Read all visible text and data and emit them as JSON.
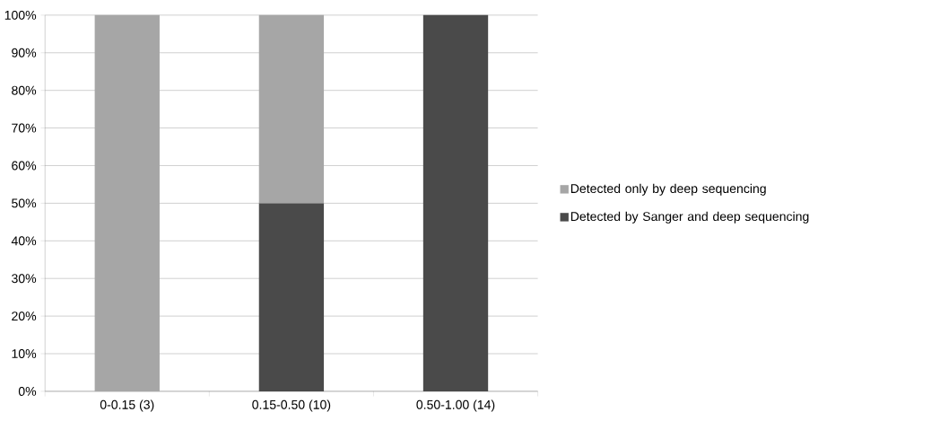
{
  "chart_data": {
    "type": "bar",
    "stacked": true,
    "categories": [
      "0-0.15 (3)",
      "0.15-0.50 (10)",
      "0.50-1.00 (14)"
    ],
    "series": [
      {
        "name": "Detected by Sanger and deep sequencing",
        "color": "#4a4a4a",
        "values": [
          0,
          50,
          100
        ]
      },
      {
        "name": "Detected only by deep sequencing",
        "color": "#a6a6a6",
        "values": [
          100,
          50,
          0
        ]
      }
    ],
    "ylim": [
      0,
      100
    ],
    "yticks": [
      {
        "value": 0,
        "label": "0%"
      },
      {
        "value": 10,
        "label": "10%"
      },
      {
        "value": 20,
        "label": "20%"
      },
      {
        "value": 30,
        "label": "30%"
      },
      {
        "value": 40,
        "label": "40%"
      },
      {
        "value": 50,
        "label": "50%"
      },
      {
        "value": 60,
        "label": "60%"
      },
      {
        "value": 70,
        "label": "70%"
      },
      {
        "value": 80,
        "label": "80%"
      },
      {
        "value": 90,
        "label": "90%"
      },
      {
        "value": 100,
        "label": "100%"
      }
    ],
    "grid": "y",
    "legend": "right"
  }
}
